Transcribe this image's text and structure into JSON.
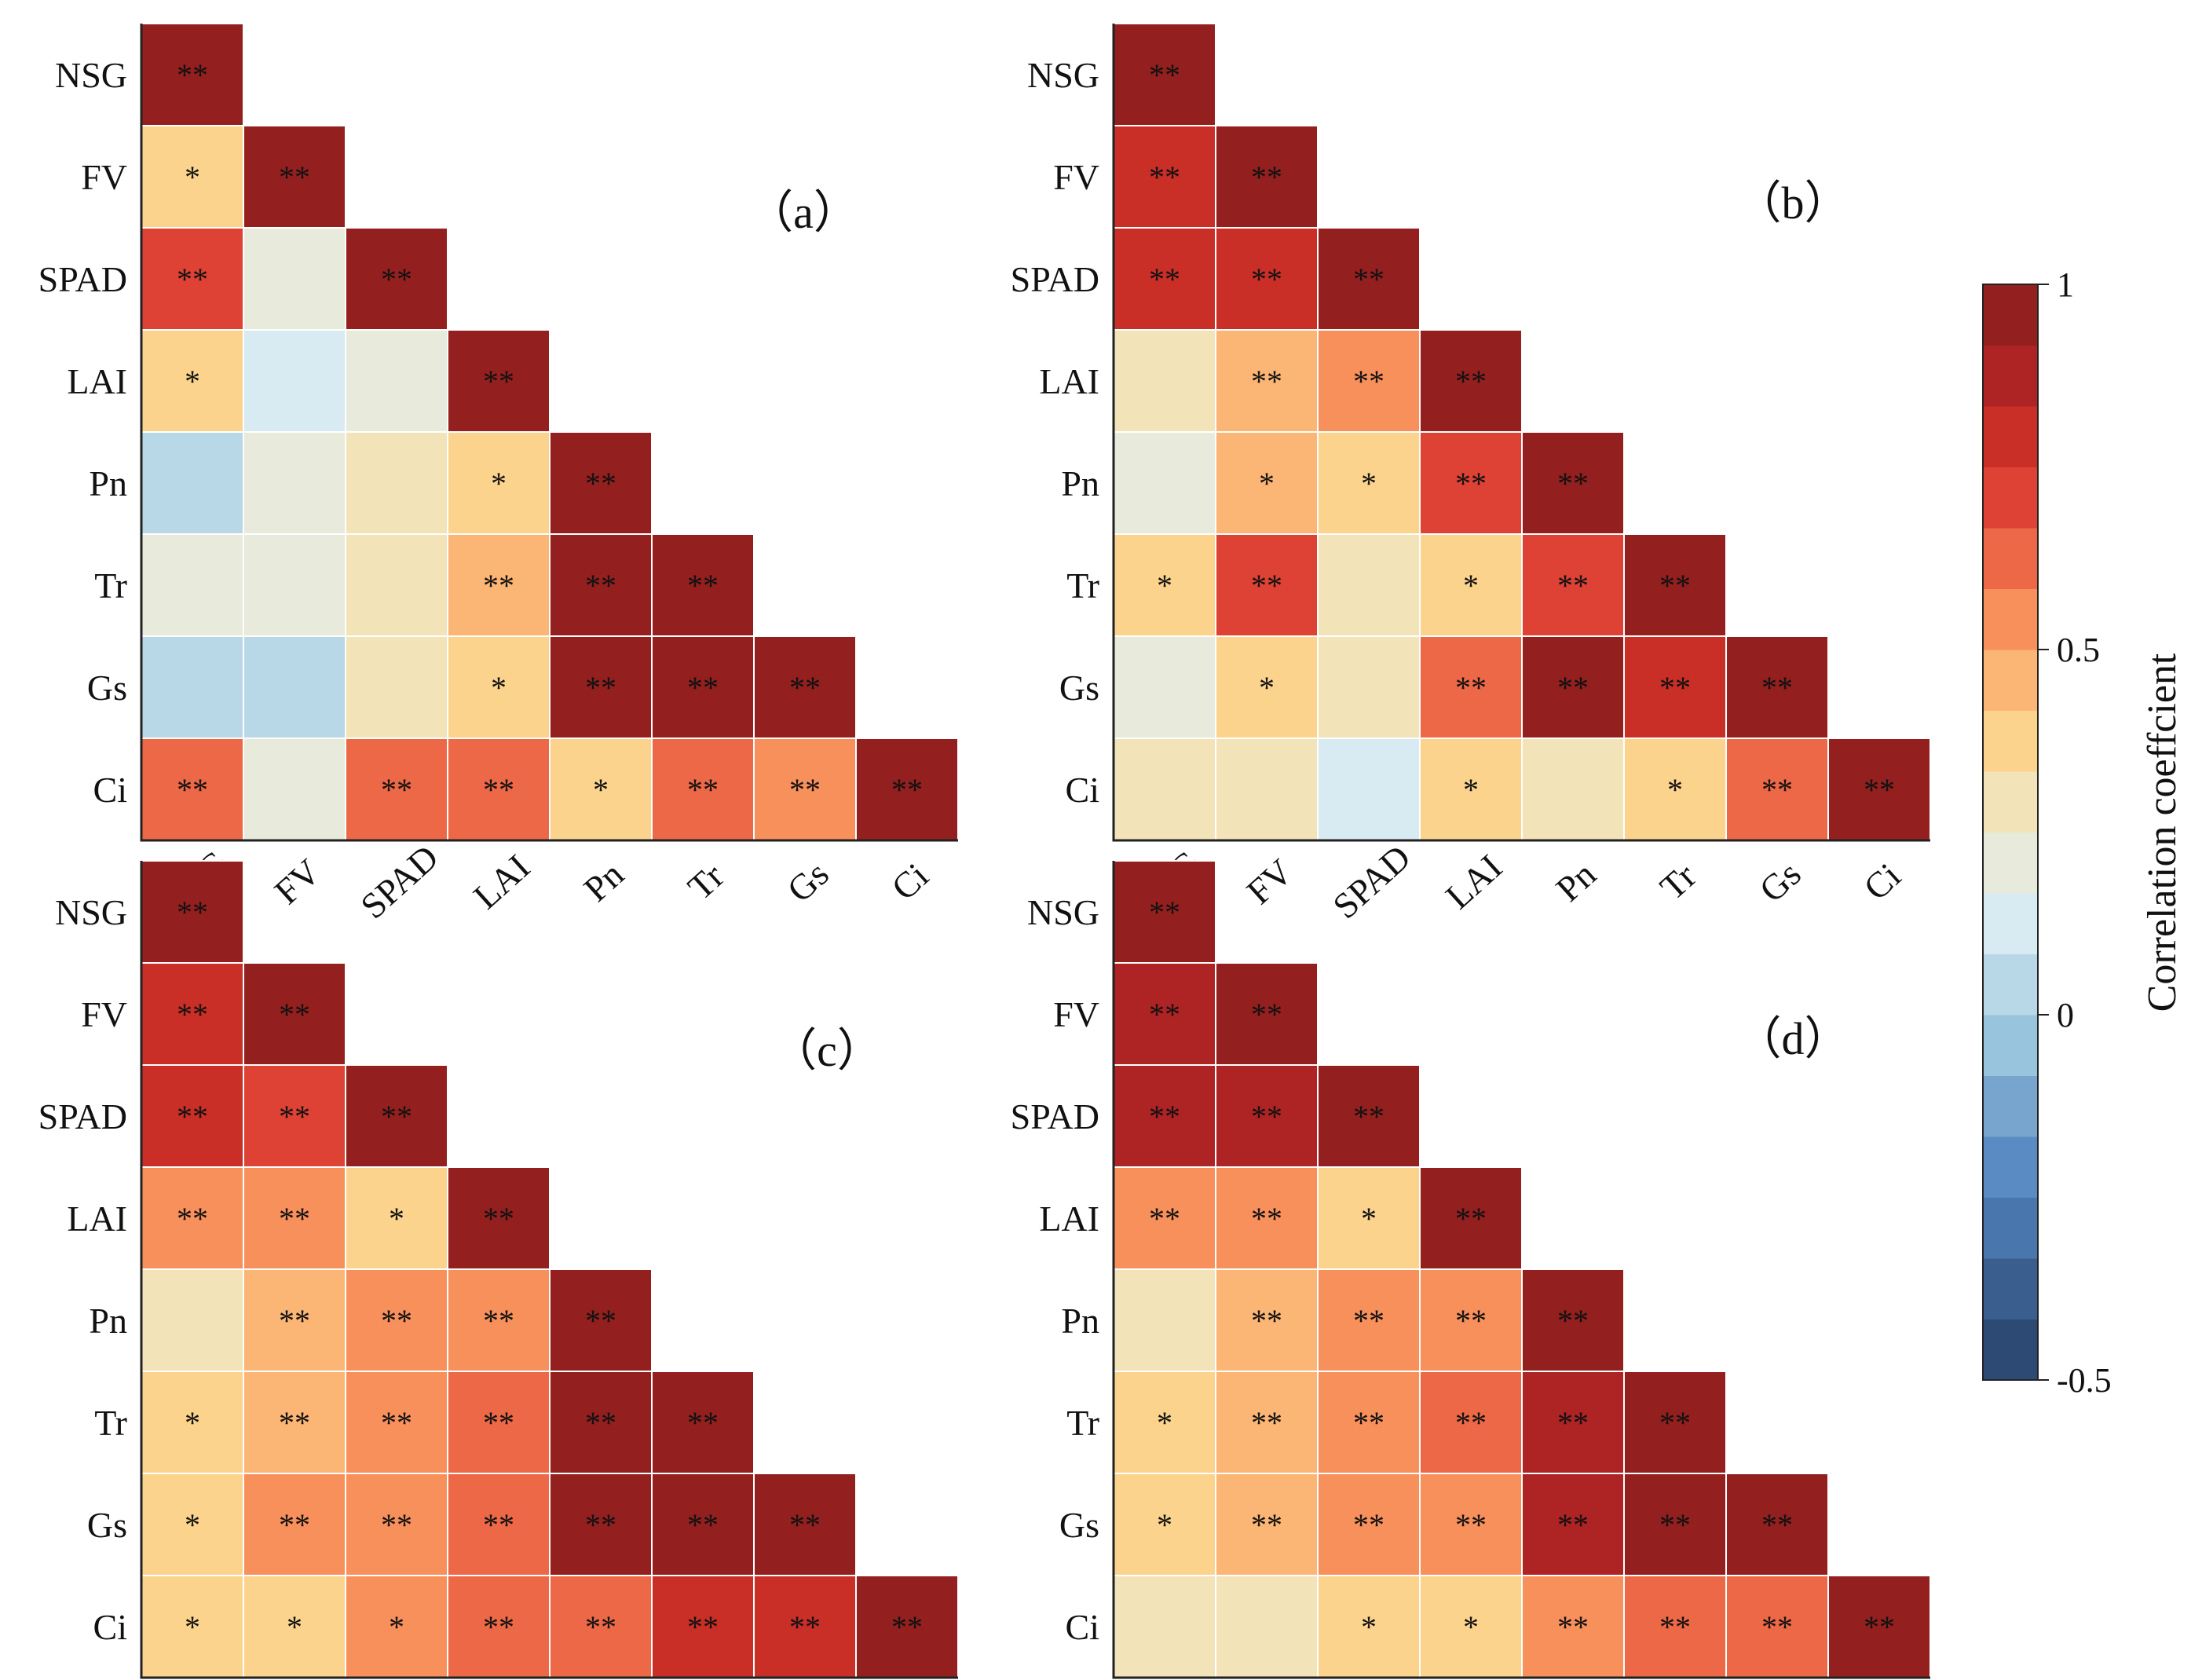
{
  "chart_data": {
    "type": "heatmap",
    "variables": [
      "NSG",
      "FV",
      "SPAD",
      "LAI",
      "Pn",
      "Tr",
      "Gs",
      "Ci"
    ],
    "colorbar": {
      "title": "Correlation coeffcient",
      "range": [
        -0.5,
        1
      ],
      "ticks": [
        1,
        0.5,
        0,
        -0.5
      ],
      "tick_labels": [
        "1",
        "0.5",
        "0",
        "-0.5"
      ],
      "colors": [
        "#2c4a74",
        "#3a5f8f",
        "#4a76ae",
        "#5a8bc3",
        "#77a5ce",
        "#98c4de",
        "#b8d8e8",
        "#d8ebf3",
        "#e8eadb",
        "#f2e3b8",
        "#fbd38d",
        "#fbb575",
        "#f8905c",
        "#ec6846",
        "#dd4234",
        "#c92f27",
        "#ae2324",
        "#93201f"
      ]
    },
    "panels": [
      {
        "label": "（a）",
        "r": [
          [
            1
          ],
          [
            0.38,
            1
          ],
          [
            0.7,
            0.2,
            1
          ],
          [
            0.38,
            0.09,
            0.22,
            1
          ],
          [
            0.06,
            0.23,
            0.26,
            0.38,
            1
          ],
          [
            0.23,
            0.23,
            0.3,
            0.48,
            0.97,
            1
          ],
          [
            0.07,
            0.08,
            0.28,
            0.38,
            0.97,
            0.97,
            1
          ],
          [
            0.62,
            0.23,
            0.62,
            0.66,
            0.38,
            0.62,
            0.54,
            1
          ]
        ],
        "sig": [
          [
            "**"
          ],
          [
            "*",
            "**"
          ],
          [
            "**",
            "",
            "**"
          ],
          [
            "*",
            "",
            "",
            "**"
          ],
          [
            "",
            "",
            "",
            "*",
            "**"
          ],
          [
            "",
            "",
            "",
            "**",
            "**",
            "**"
          ],
          [
            "",
            "",
            "",
            "*",
            "**",
            "**",
            "**"
          ],
          [
            "**",
            "",
            "**",
            "**",
            "*",
            "**",
            "**",
            "**"
          ]
        ]
      },
      {
        "label": "（b）",
        "r": [
          [
            1
          ],
          [
            0.82,
            1
          ],
          [
            0.76,
            0.76,
            1
          ],
          [
            0.29,
            0.48,
            0.5,
            1
          ],
          [
            0.23,
            0.48,
            0.38,
            0.7,
            1
          ],
          [
            0.38,
            0.7,
            0.29,
            0.38,
            0.7,
            1
          ],
          [
            0.23,
            0.38,
            0.29,
            0.62,
            0.93,
            0.8,
            1
          ],
          [
            0.29,
            0.29,
            0.09,
            0.38,
            0.29,
            0.38,
            0.66,
            1
          ]
        ],
        "sig": [
          [
            "**"
          ],
          [
            "**",
            "**"
          ],
          [
            "**",
            "**",
            "**"
          ],
          [
            "",
            "**",
            "**",
            "**"
          ],
          [
            "",
            "*",
            "*",
            "**",
            "**"
          ],
          [
            "*",
            "**",
            "",
            "*",
            "**",
            "**"
          ],
          [
            "",
            "*",
            "",
            "**",
            "**",
            "**",
            "**"
          ],
          [
            "",
            "",
            "",
            "*",
            "",
            "*",
            "**",
            "**"
          ]
        ]
      },
      {
        "label": "（c）",
        "r": [
          [
            1
          ],
          [
            0.78,
            1
          ],
          [
            0.78,
            0.68,
            1
          ],
          [
            0.54,
            0.58,
            0.38,
            1
          ],
          [
            0.3,
            0.48,
            0.52,
            0.58,
            1
          ],
          [
            0.38,
            0.48,
            0.5,
            0.64,
            0.96,
            1
          ],
          [
            0.38,
            0.52,
            0.58,
            0.66,
            0.96,
            0.96,
            1
          ],
          [
            0.38,
            0.38,
            0.5,
            0.66,
            0.6,
            0.82,
            0.76,
            1
          ]
        ],
        "sig": [
          [
            "**"
          ],
          [
            "**",
            "**"
          ],
          [
            "**",
            "**",
            "**"
          ],
          [
            "**",
            "**",
            "*",
            "**"
          ],
          [
            "",
            "**",
            "**",
            "**",
            "**"
          ],
          [
            "*",
            "**",
            "**",
            "**",
            "**",
            "**"
          ],
          [
            "*",
            "**",
            "**",
            "**",
            "**",
            "**",
            "**"
          ],
          [
            "*",
            "*",
            "*",
            "**",
            "**",
            "**",
            "**",
            "**"
          ]
        ]
      },
      {
        "label": "（d）",
        "r": [
          [
            1
          ],
          [
            0.86,
            1
          ],
          [
            0.86,
            0.84,
            1
          ],
          [
            0.52,
            0.5,
            0.38,
            1
          ],
          [
            0.3,
            0.48,
            0.5,
            0.58,
            1
          ],
          [
            0.38,
            0.48,
            0.54,
            0.64,
            0.86,
            1
          ],
          [
            0.38,
            0.48,
            0.52,
            0.58,
            0.86,
            0.96,
            1
          ],
          [
            0.3,
            0.3,
            0.38,
            0.38,
            0.5,
            0.66,
            0.66,
            1
          ]
        ],
        "sig": [
          [
            "**"
          ],
          [
            "**",
            "**"
          ],
          [
            "**",
            "**",
            "**"
          ],
          [
            "**",
            "**",
            "*",
            "**"
          ],
          [
            "",
            "**",
            "**",
            "**",
            "**"
          ],
          [
            "*",
            "**",
            "**",
            "**",
            "**",
            "**"
          ],
          [
            "*",
            "**",
            "**",
            "**",
            "**",
            "**",
            "**"
          ],
          [
            "",
            "",
            "*",
            "*",
            "**",
            "**",
            "**",
            "**"
          ]
        ]
      }
    ]
  }
}
